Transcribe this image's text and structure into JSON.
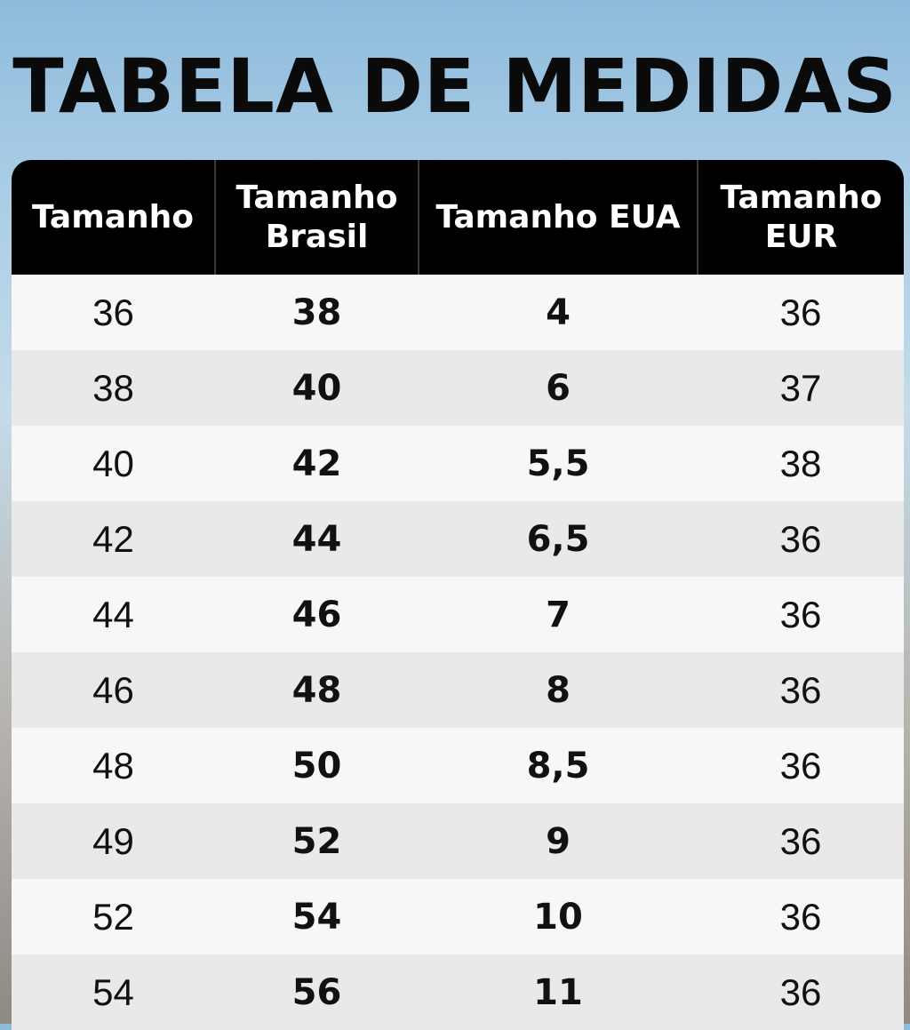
{
  "title": "TABELA DE MEDIDAS",
  "headers": [
    "Tamanho",
    "Tamanho Brasil",
    "Tamanho EUA",
    "Tamanho EUR"
  ],
  "rows": [
    [
      "36",
      "38",
      "4",
      "36"
    ],
    [
      "38",
      "40",
      "6",
      "37"
    ],
    [
      "40",
      "42",
      "5,5",
      "38"
    ],
    [
      "42",
      "44",
      "6,5",
      "36"
    ],
    [
      "44",
      "46",
      "7",
      "36"
    ],
    [
      "46",
      "48",
      "8",
      "36"
    ],
    [
      "48",
      "50",
      "8,5",
      "36"
    ],
    [
      "49",
      "52",
      "9",
      "36"
    ],
    [
      "52",
      "54",
      "10",
      "36"
    ],
    [
      "54",
      "56",
      "11",
      "36"
    ]
  ],
  "colors": {
    "header_bg": "#000000",
    "header_text": "#ffffff",
    "row_light": "#f7f7f7",
    "row_dark": "#e9e9e9"
  }
}
